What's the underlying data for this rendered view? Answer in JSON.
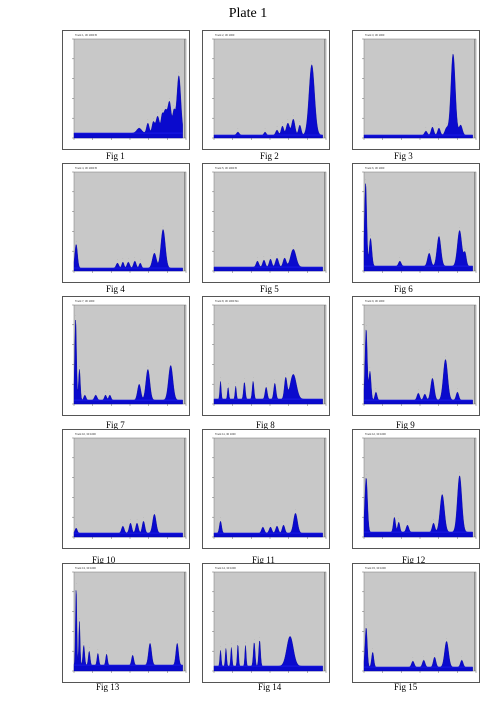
{
  "page": {
    "title": "Plate 1"
  },
  "chart_data": [
    {
      "type": "area",
      "figure": "Fig 1",
      "header": "Track 1, 30 1000 B",
      "color": "#0a0acd",
      "baseline": 0.05,
      "ylim": [
        0,
        1
      ],
      "peaks": [
        [
          0.6,
          0.05,
          0.022
        ],
        [
          0.68,
          0.1,
          0.012
        ],
        [
          0.73,
          0.11,
          0.012
        ],
        [
          0.77,
          0.17,
          0.016
        ],
        [
          0.81,
          0.13,
          0.01
        ],
        [
          0.84,
          0.23,
          0.018
        ],
        [
          0.88,
          0.3,
          0.015
        ],
        [
          0.92,
          0.21,
          0.012
        ],
        [
          0.965,
          0.58,
          0.018
        ]
      ]
    },
    {
      "type": "area",
      "figure": "Fig 2",
      "header": "Track 2, 30 1000",
      "color": "#0a0acd",
      "baseline": 0.03,
      "ylim": [
        0,
        1
      ],
      "peaks": [
        [
          0.22,
          0.03,
          0.012
        ],
        [
          0.47,
          0.03,
          0.01
        ],
        [
          0.58,
          0.05,
          0.012
        ],
        [
          0.63,
          0.09,
          0.012
        ],
        [
          0.68,
          0.12,
          0.015
        ],
        [
          0.73,
          0.16,
          0.015
        ],
        [
          0.79,
          0.1,
          0.012
        ],
        [
          0.9,
          0.71,
          0.025
        ]
      ]
    },
    {
      "type": "area",
      "figure": "Fig 3",
      "header": "Track 3, 30 1000",
      "color": "#0a0acd",
      "baseline": 0.03,
      "ylim": [
        0,
        1
      ],
      "peaks": [
        [
          0.57,
          0.04,
          0.012
        ],
        [
          0.63,
          0.08,
          0.012
        ],
        [
          0.69,
          0.07,
          0.012
        ],
        [
          0.76,
          0.07,
          0.015
        ],
        [
          0.82,
          0.82,
          0.02
        ],
        [
          0.89,
          0.1,
          0.015
        ]
      ]
    },
    {
      "type": "area",
      "figure": "Fig 4",
      "header": "Track 4, 30 1000 B",
      "color": "#0a0acd",
      "baseline": 0.03,
      "ylim": [
        0,
        1
      ],
      "peaks": [
        [
          0.02,
          0.24,
          0.012
        ],
        [
          0.4,
          0.05,
          0.012
        ],
        [
          0.45,
          0.06,
          0.01
        ],
        [
          0.5,
          0.06,
          0.012
        ],
        [
          0.56,
          0.07,
          0.012
        ],
        [
          0.61,
          0.05,
          0.01
        ],
        [
          0.74,
          0.15,
          0.018
        ],
        [
          0.82,
          0.39,
          0.02
        ]
      ]
    },
    {
      "type": "area",
      "figure": "Fig 5",
      "header": "Track 5, 30 1000 B",
      "color": "#0a0acd",
      "baseline": 0.04,
      "ylim": [
        0,
        1
      ],
      "peaks": [
        [
          0.4,
          0.06,
          0.012
        ],
        [
          0.46,
          0.07,
          0.012
        ],
        [
          0.52,
          0.08,
          0.012
        ],
        [
          0.58,
          0.09,
          0.014
        ],
        [
          0.65,
          0.09,
          0.014
        ],
        [
          0.73,
          0.18,
          0.025
        ]
      ]
    },
    {
      "type": "area",
      "figure": "Fig 6",
      "header": "Track 6, 30 1000",
      "color": "#0a0acd",
      "baseline": 0.05,
      "ylim": [
        0,
        1
      ],
      "peaks": [
        [
          0.015,
          0.84,
          0.01
        ],
        [
          0.06,
          0.28,
          0.012
        ],
        [
          0.33,
          0.05,
          0.012
        ],
        [
          0.6,
          0.13,
          0.015
        ],
        [
          0.69,
          0.3,
          0.018
        ],
        [
          0.88,
          0.36,
          0.02
        ],
        [
          0.93,
          0.13,
          0.012
        ]
      ]
    },
    {
      "type": "area",
      "figure": "Fig 7",
      "header": "Track 7, 30 1000",
      "color": "#0a0acd",
      "baseline": 0.04,
      "ylim": [
        0,
        1
      ],
      "peaks": [
        [
          0.015,
          0.82,
          0.008
        ],
        [
          0.05,
          0.31,
          0.008
        ],
        [
          0.1,
          0.05,
          0.01
        ],
        [
          0.2,
          0.05,
          0.012
        ],
        [
          0.29,
          0.05,
          0.01
        ],
        [
          0.33,
          0.05,
          0.01
        ],
        [
          0.6,
          0.16,
          0.015
        ],
        [
          0.68,
          0.31,
          0.018
        ],
        [
          0.89,
          0.35,
          0.02
        ]
      ]
    },
    {
      "type": "area",
      "figure": "Fig 8",
      "header": "Track 8, 30 1000 Mn",
      "color": "#0a0acd",
      "baseline": 0.05,
      "ylim": [
        0,
        1
      ],
      "peaks": [
        [
          0.06,
          0.18,
          0.006
        ],
        [
          0.13,
          0.12,
          0.006
        ],
        [
          0.2,
          0.13,
          0.006
        ],
        [
          0.28,
          0.17,
          0.008
        ],
        [
          0.36,
          0.18,
          0.008
        ],
        [
          0.48,
          0.12,
          0.01
        ],
        [
          0.56,
          0.16,
          0.01
        ],
        [
          0.66,
          0.21,
          0.012
        ],
        [
          0.73,
          0.25,
          0.028
        ]
      ]
    },
    {
      "type": "area",
      "figure": "Fig 9",
      "header": "Track 9, 30 1000",
      "color": "#0a0acd",
      "baseline": 0.04,
      "ylim": [
        0,
        1
      ],
      "peaks": [
        [
          0.02,
          0.72,
          0.01
        ],
        [
          0.055,
          0.29,
          0.01
        ],
        [
          0.11,
          0.08,
          0.01
        ],
        [
          0.5,
          0.07,
          0.012
        ],
        [
          0.56,
          0.06,
          0.012
        ],
        [
          0.63,
          0.22,
          0.016
        ],
        [
          0.75,
          0.41,
          0.02
        ],
        [
          0.86,
          0.08,
          0.012
        ]
      ]
    },
    {
      "type": "area",
      "figure": "Fig 10",
      "header": "Track 10, 30 1000",
      "color": "#0a0acd",
      "baseline": 0.04,
      "ylim": [
        0,
        1
      ],
      "peaks": [
        [
          0.02,
          0.05,
          0.01
        ],
        [
          0.45,
          0.07,
          0.012
        ],
        [
          0.52,
          0.1,
          0.012
        ],
        [
          0.58,
          0.1,
          0.012
        ],
        [
          0.64,
          0.12,
          0.012
        ],
        [
          0.74,
          0.19,
          0.016
        ]
      ]
    },
    {
      "type": "area",
      "figure": "Fig 11",
      "header": "Track 11, 30 1000",
      "color": "#0a0acd",
      "baseline": 0.04,
      "ylim": [
        0,
        1
      ],
      "peaks": [
        [
          0.06,
          0.12,
          0.01
        ],
        [
          0.45,
          0.06,
          0.012
        ],
        [
          0.52,
          0.06,
          0.012
        ],
        [
          0.58,
          0.07,
          0.012
        ],
        [
          0.64,
          0.08,
          0.012
        ],
        [
          0.75,
          0.2,
          0.018
        ]
      ]
    },
    {
      "type": "area",
      "figure": "Fig 12",
      "header": "Track 12, 30 1000",
      "color": "#0a0acd",
      "baseline": 0.05,
      "ylim": [
        0,
        1
      ],
      "peaks": [
        [
          0.02,
          0.55,
          0.012
        ],
        [
          0.28,
          0.15,
          0.01
        ],
        [
          0.32,
          0.1,
          0.01
        ],
        [
          0.4,
          0.07,
          0.012
        ],
        [
          0.64,
          0.09,
          0.012
        ],
        [
          0.72,
          0.38,
          0.02
        ],
        [
          0.88,
          0.57,
          0.02
        ]
      ]
    },
    {
      "type": "area",
      "figure": "Fig 13",
      "header": "Track 13, 30 1000",
      "color": "#0a0acd",
      "baseline": 0.06,
      "ylim": [
        0,
        1
      ],
      "peaks": [
        [
          0.02,
          0.79,
          0.006
        ],
        [
          0.05,
          0.44,
          0.006
        ],
        [
          0.09,
          0.2,
          0.008
        ],
        [
          0.14,
          0.14,
          0.008
        ],
        [
          0.22,
          0.12,
          0.008
        ],
        [
          0.3,
          0.11,
          0.008
        ],
        [
          0.54,
          0.1,
          0.01
        ],
        [
          0.7,
          0.22,
          0.014
        ],
        [
          0.95,
          0.22,
          0.012
        ]
      ]
    },
    {
      "type": "area",
      "figure": "Fig 14",
      "header": "Track 14, 30 1000",
      "color": "#0a0acd",
      "baseline": 0.05,
      "ylim": [
        0,
        1
      ],
      "peaks": [
        [
          0.06,
          0.16,
          0.006
        ],
        [
          0.11,
          0.18,
          0.006
        ],
        [
          0.16,
          0.19,
          0.006
        ],
        [
          0.22,
          0.22,
          0.006
        ],
        [
          0.29,
          0.21,
          0.006
        ],
        [
          0.37,
          0.24,
          0.008
        ],
        [
          0.42,
          0.26,
          0.008
        ],
        [
          0.7,
          0.3,
          0.03
        ]
      ]
    },
    {
      "type": "area",
      "figure": "Fig 15",
      "header": "Track 15, 30 1000",
      "color": "#0a0acd",
      "baseline": 0.04,
      "ylim": [
        0,
        1
      ],
      "peaks": [
        [
          0.02,
          0.4,
          0.01
        ],
        [
          0.08,
          0.15,
          0.01
        ],
        [
          0.45,
          0.06,
          0.012
        ],
        [
          0.55,
          0.07,
          0.012
        ],
        [
          0.65,
          0.1,
          0.012
        ],
        [
          0.76,
          0.26,
          0.018
        ],
        [
          0.9,
          0.07,
          0.012
        ]
      ]
    }
  ]
}
